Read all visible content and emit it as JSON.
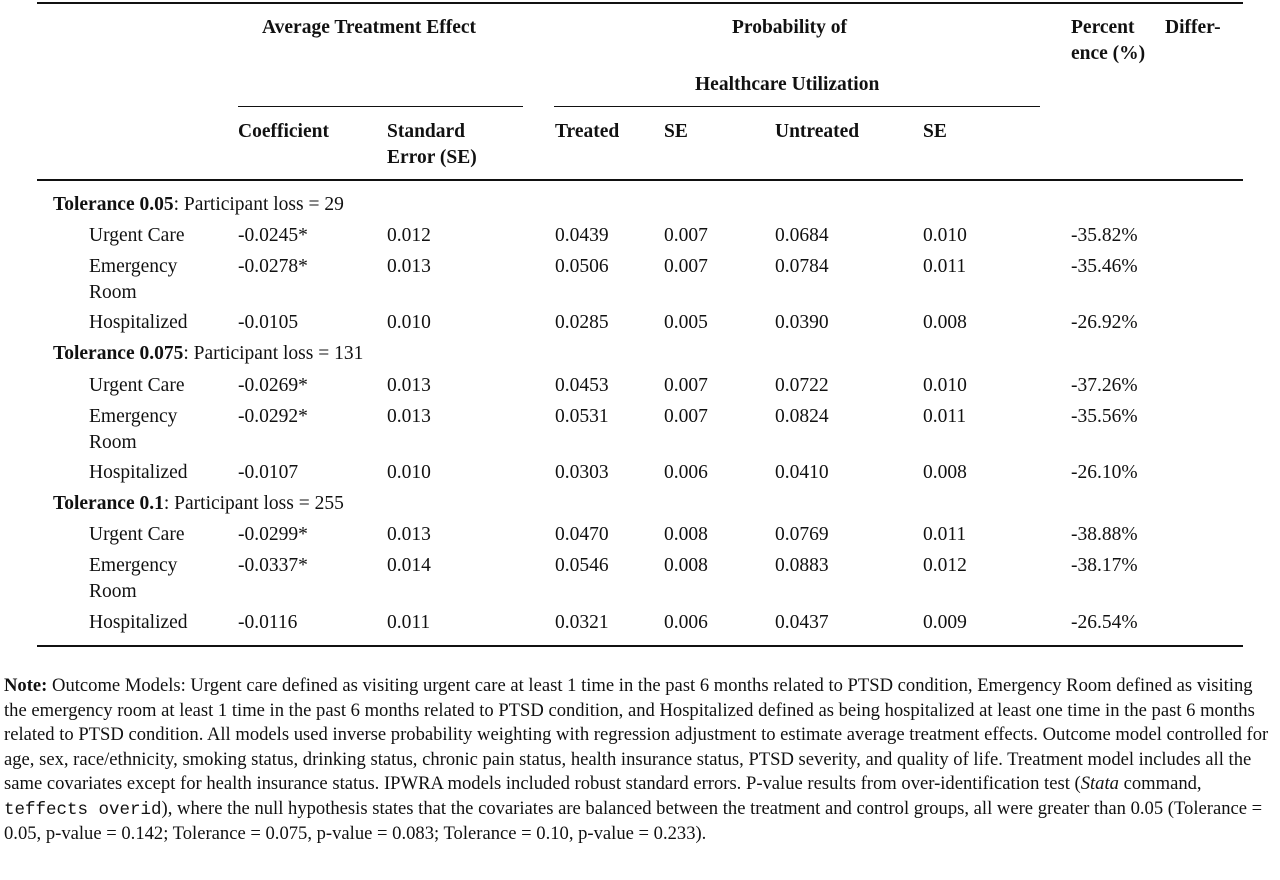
{
  "header": {
    "ate_group": "Average Treatment Effect",
    "prob_group_line1": "Probability of",
    "prob_group_line2": "Healthcare Utilization",
    "pct_line1a": "Percent",
    "pct_line1b": "Differ-",
    "pct_line2": "ence (%)",
    "coef": "Coefficient",
    "se_line1": "Standard",
    "se_line2": "Error (SE)",
    "treated": "Treated",
    "se_t": "SE",
    "untreated": "Untreated",
    "se_u": "SE"
  },
  "sections": [
    {
      "bold": "Tolerance 0.05",
      "rest": ": Participant loss = 29",
      "rows": [
        {
          "label1": "Urgent Care",
          "label2": "",
          "coef": "-0.0245*",
          "se": "0.012",
          "treated": "0.0439",
          "se_t": "0.007",
          "untreated": "0.0684",
          "se_u": "0.010",
          "pct": "-35.82%"
        },
        {
          "label1": "Emergency",
          "label2": "Room",
          "coef": "-0.0278*",
          "se": "0.013",
          "treated": "0.0506",
          "se_t": "0.007",
          "untreated": "0.0784",
          "se_u": "0.011",
          "pct": "-35.46%"
        },
        {
          "label1": "Hospitalized",
          "label2": "",
          "coef": "-0.0105",
          "se": "0.010",
          "treated": "0.0285",
          "se_t": "0.005",
          "untreated": "0.0390",
          "se_u": "0.008",
          "pct": "-26.92%"
        }
      ]
    },
    {
      "bold": "Tolerance 0.075",
      "rest": ": Participant loss = 131",
      "rows": [
        {
          "label1": "Urgent Care",
          "label2": "",
          "coef": "-0.0269*",
          "se": "0.013",
          "treated": "0.0453",
          "se_t": "0.007",
          "untreated": "0.0722",
          "se_u": "0.010",
          "pct": "-37.26%"
        },
        {
          "label1": "Emergency",
          "label2": "Room",
          "coef": "-0.0292*",
          "se": "0.013",
          "treated": "0.0531",
          "se_t": "0.007",
          "untreated": "0.0824",
          "se_u": "0.011",
          "pct": "-35.56%"
        },
        {
          "label1": "Hospitalized",
          "label2": "",
          "coef": "-0.0107",
          "se": "0.010",
          "treated": "0.0303",
          "se_t": "0.006",
          "untreated": "0.0410",
          "se_u": "0.008",
          "pct": "-26.10%"
        }
      ]
    },
    {
      "bold": "Tolerance 0.1",
      "rest": ": Participant loss = 255",
      "rows": [
        {
          "label1": "Urgent Care",
          "label2": "",
          "coef": "-0.0299*",
          "se": "0.013",
          "treated": "0.0470",
          "se_t": "0.008",
          "untreated": "0.0769",
          "se_u": "0.011",
          "pct": "-38.88%"
        },
        {
          "label1": "Emergency",
          "label2": "Room",
          "coef": "-0.0337*",
          "se": "0.014",
          "treated": "0.0546",
          "se_t": "0.008",
          "untreated": "0.0883",
          "se_u": "0.012",
          "pct": "-38.17%"
        },
        {
          "label1": "Hospitalized",
          "label2": "",
          "coef": "-0.0116",
          "se": "0.011",
          "treated": "0.0321",
          "se_t": "0.006",
          "untreated": "0.0437",
          "se_u": "0.009",
          "pct": "-26.54%"
        }
      ]
    }
  ],
  "note": {
    "label": "Note:",
    "text1": " Outcome Models: Urgent care defined as visiting urgent care at least 1 time in the past 6 months related to PTSD condition, Emergency Room defined as visiting the emergency room at least 1 time in the past 6 months related to PTSD condition, and Hospitalized defined as being hospitalized at least one time in the past 6 months related to PTSD condition. All models used inverse probability weighting with regression adjustment to estimate average treatment effects. Outcome model controlled for age, sex, race/ethnicity, smoking status, drinking status, chronic pain status, health insurance status, PTSD severity, and quality of life. Treatment model includes all the same covariates except for health insurance status. IPWRA models included robust standard errors. P-value results from over-identification test (",
    "italic": "Stata",
    "text2": " command, ",
    "code": "teffects overid",
    "text3": "), where the null hypothesis states that the covariates are balanced between the treatment and control groups, all were greater than 0.05 (Tolerance = 0.05, p-value = 0.142; Tolerance = 0.075, p-value = 0.083; Tolerance = 0.10, p-value = 0.233)."
  }
}
